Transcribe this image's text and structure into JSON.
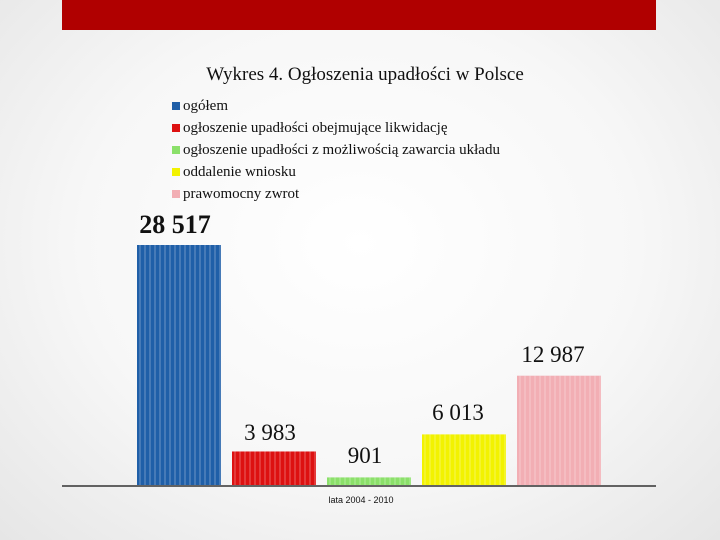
{
  "chart_data": {
    "type": "bar",
    "title": "Wykres 4. Ogłoszenia upadłości w Polsce",
    "categories": [
      "lata 2004 - 2010"
    ],
    "series": [
      {
        "name": "ogółem",
        "values": [
          28517
        ],
        "color": "#1f5fa8",
        "label": "28 517"
      },
      {
        "name": "ogłoszenie upadłości obejmujące likwidację",
        "values": [
          3983
        ],
        "color": "#dd1111",
        "label": "3 983"
      },
      {
        "name": "ogłoszenie upadłości z możliwością zawarcia układu",
        "values": [
          901
        ],
        "color": "#8be06a",
        "label": "901"
      },
      {
        "name": "oddalenie wniosku",
        "values": [
          6013
        ],
        "color": "#f2f200",
        "label": "6 013"
      },
      {
        "name": "prawomocny zwrot",
        "values": [
          12987
        ],
        "color": "#f2aeb4",
        "label": "12 987"
      }
    ],
    "legend_position": "top-left",
    "grid": false
  }
}
